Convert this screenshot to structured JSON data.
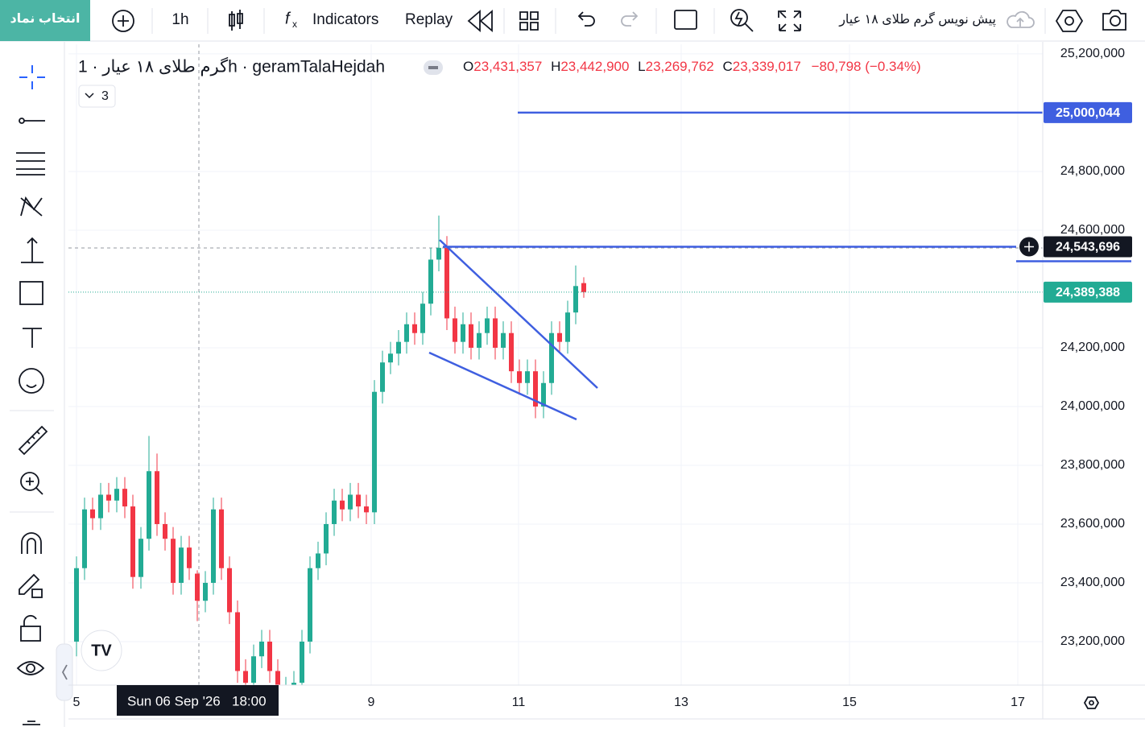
{
  "toolbar": {
    "symbol_button": "انتخاب نماد",
    "interval": "1h",
    "indicators": "Indicators",
    "replay": "Replay",
    "draft_title": "پیش نویس گرم طلای ۱۸ عیار"
  },
  "legend": {
    "symbol": "گرم طلای ۱۸ عیار · 1h · geramTalaHejdah",
    "o_label": "O",
    "o": "23,431,357",
    "h_label": "H",
    "h": "23,442,900",
    "l_label": "L",
    "l": "23,269,762",
    "c_label": "C",
    "c": "23,339,017",
    "change": "−80,798 (−0.34%)",
    "indicator_count": "3"
  },
  "crosshair": {
    "date": "Sun 06 Sep '26",
    "time": "18:00"
  },
  "chart_data": {
    "type": "candlestick",
    "open": [
      23200000,
      23450000,
      23650000,
      23620000,
      23700000,
      23680000,
      23720000,
      23660000,
      23420000,
      23550000,
      23780000,
      23600000,
      23550000,
      23400000,
      23520000,
      23431357,
      23339000,
      23400000,
      23650000,
      23450000,
      23300000,
      23100000,
      23060000,
      23150000,
      23200000,
      23100000,
      23020000,
      23040000,
      23060000,
      23200000,
      23450000,
      23500000,
      23600000,
      23680000,
      23650000,
      23700000,
      23660000,
      23640000,
      24050000,
      24150000,
      24180000,
      24220000,
      24280000,
      24250000,
      24350000,
      24500000,
      24540000,
      24300000,
      24220000,
      24280000,
      24200000,
      24250000,
      24300000,
      24200000,
      24250000,
      24120000,
      24080000,
      24120000,
      24000000,
      24080000,
      24250000,
      24220000,
      24320000,
      24420000
    ],
    "high": [
      23490000,
      23690000,
      23690000,
      23740000,
      23740000,
      23760000,
      23760000,
      23700000,
      23590000,
      23900000,
      23840000,
      23640000,
      23590000,
      23560000,
      23560000,
      23442900,
      23440000,
      23690000,
      23690000,
      23490000,
      23340000,
      23140000,
      23190000,
      23240000,
      23240000,
      23140000,
      23080000,
      23100000,
      23240000,
      23490000,
      23540000,
      23640000,
      23720000,
      23720000,
      23740000,
      23740000,
      23700000,
      24090000,
      24190000,
      24220000,
      24260000,
      24320000,
      24320000,
      24390000,
      24540000,
      24650000,
      24580000,
      24340000,
      24320000,
      24320000,
      24290000,
      24340000,
      24340000,
      24290000,
      24290000,
      24160000,
      24160000,
      24160000,
      24120000,
      24290000,
      24290000,
      24360000,
      24480000,
      24440000
    ],
    "low": [
      23150000,
      23410000,
      23580000,
      23580000,
      23640000,
      23640000,
      23620000,
      23380000,
      23380000,
      23510000,
      23560000,
      23510000,
      23360000,
      23360000,
      23410000,
      23269762,
      23300000,
      23360000,
      23410000,
      23260000,
      23060000,
      23020000,
      23020000,
      23110000,
      23060000,
      22980000,
      22980000,
      23000000,
      23020000,
      23160000,
      23410000,
      23460000,
      23560000,
      23610000,
      23610000,
      23620000,
      23600000,
      23600000,
      24010000,
      24110000,
      24140000,
      24180000,
      24210000,
      24210000,
      24310000,
      24460000,
      24260000,
      24180000,
      24180000,
      24160000,
      24160000,
      24210000,
      24160000,
      24160000,
      24080000,
      24040000,
      24040000,
      23960000,
      23960000,
      24040000,
      24180000,
      24180000,
      24280000,
      24370000
    ],
    "close": [
      23450000,
      23650000,
      23620000,
      23700000,
      23680000,
      23720000,
      23660000,
      23420000,
      23550000,
      23780000,
      23600000,
      23550000,
      23400000,
      23520000,
      23450000,
      23339017,
      23400000,
      23650000,
      23450000,
      23300000,
      23100000,
      23060000,
      23150000,
      23200000,
      23100000,
      23020000,
      23040000,
      23060000,
      23200000,
      23450000,
      23500000,
      23600000,
      23680000,
      23650000,
      23700000,
      23660000,
      23640000,
      24050000,
      24150000,
      24180000,
      24220000,
      24280000,
      24250000,
      24350000,
      24500000,
      24540000,
      24300000,
      24220000,
      24280000,
      24200000,
      24250000,
      24300000,
      24200000,
      24250000,
      24120000,
      24080000,
      24120000,
      24000000,
      24080000,
      24250000,
      24220000,
      24320000,
      24410000,
      24389388
    ],
    "up_color": "#22ab94",
    "down_color": "#f23645",
    "xlim": [
      -1,
      120
    ],
    "xticks": [
      {
        "value": 0,
        "label": "5"
      },
      {
        "value": 36.6,
        "label": "9"
      },
      {
        "value": 54.9,
        "label": "11"
      },
      {
        "value": 75.1,
        "label": "13"
      },
      {
        "value": 96,
        "label": "15"
      },
      {
        "value": 116.9,
        "label": "17"
      }
    ],
    "ylim": [
      23052000,
      25219000
    ],
    "yticks": [
      {
        "value": 23200000,
        "label": "23,200,000"
      },
      {
        "value": 23400000,
        "label": "23,400,000"
      },
      {
        "value": 23600000,
        "label": "23,600,000"
      },
      {
        "value": 23800000,
        "label": "23,800,000"
      },
      {
        "value": 24000000,
        "label": "24,000,000"
      },
      {
        "value": 24200000,
        "label": "24,200,000"
      },
      {
        "value": 24600000,
        "label": "24,600,000"
      },
      {
        "value": 24800000,
        "label": "24,800,000"
      },
      {
        "value": 25200000,
        "label": "25,200,000"
      }
    ],
    "grid": true,
    "price_lines": [
      {
        "value": 25000044,
        "label": "25,000,044",
        "color": "#3f5fe0",
        "label_color": "#3f5fe0"
      },
      {
        "value": 24543696,
        "label": "24,543,696",
        "color": "#3f5fe0",
        "label_color": "#131722"
      }
    ],
    "last_price": {
      "value": 24389388,
      "label": "24,389,388",
      "color": "#22ab94"
    }
  }
}
